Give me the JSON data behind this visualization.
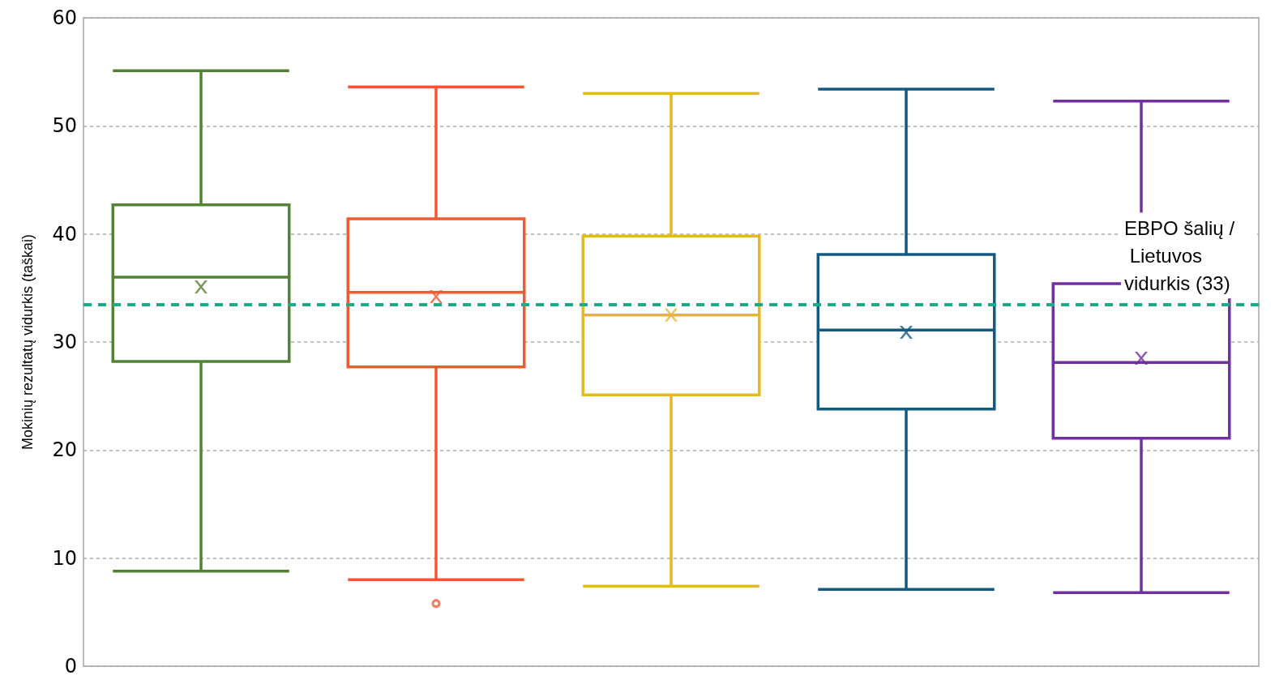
{
  "chart_data": {
    "type": "box",
    "ylabel": "Mokinių rezultatų vidurkis (taškai)",
    "categories": [
      null,
      null,
      null,
      null,
      null
    ],
    "colors": [
      "#548235",
      "#f05a32",
      "#e6b729",
      "#135a82",
      "#7030a0"
    ],
    "boxes": [
      {
        "low": 8.8,
        "q1": 28.2,
        "median": 36.0,
        "q3": 42.7,
        "high": 55.1,
        "mean": 35.1
      },
      {
        "low": 8.0,
        "q1": 27.7,
        "median": 34.6,
        "q3": 41.4,
        "high": 53.6,
        "mean": 34.2,
        "outliers": [
          5.8
        ]
      },
      {
        "low": 7.4,
        "q1": 25.1,
        "median": 32.5,
        "q3": 39.8,
        "high": 53.0,
        "mean": 32.5
      },
      {
        "low": 7.1,
        "q1": 23.8,
        "median": 31.1,
        "q3": 38.1,
        "high": 53.4,
        "mean": 30.9
      },
      {
        "low": 6.8,
        "q1": 21.1,
        "median": 28.1,
        "q3": 35.4,
        "high": 52.3,
        "mean": 28.5
      }
    ],
    "ylim": [
      0,
      60
    ],
    "yticks": [
      0,
      10,
      20,
      30,
      40,
      50,
      60
    ],
    "grid": "y",
    "ref_lines": [
      {
        "axis": "y",
        "value": 33.5,
        "label": "EBPO šalių / Lietuvos vidurkis (33)",
        "color": "#1aab8a",
        "line_style": "dashed"
      }
    ]
  }
}
